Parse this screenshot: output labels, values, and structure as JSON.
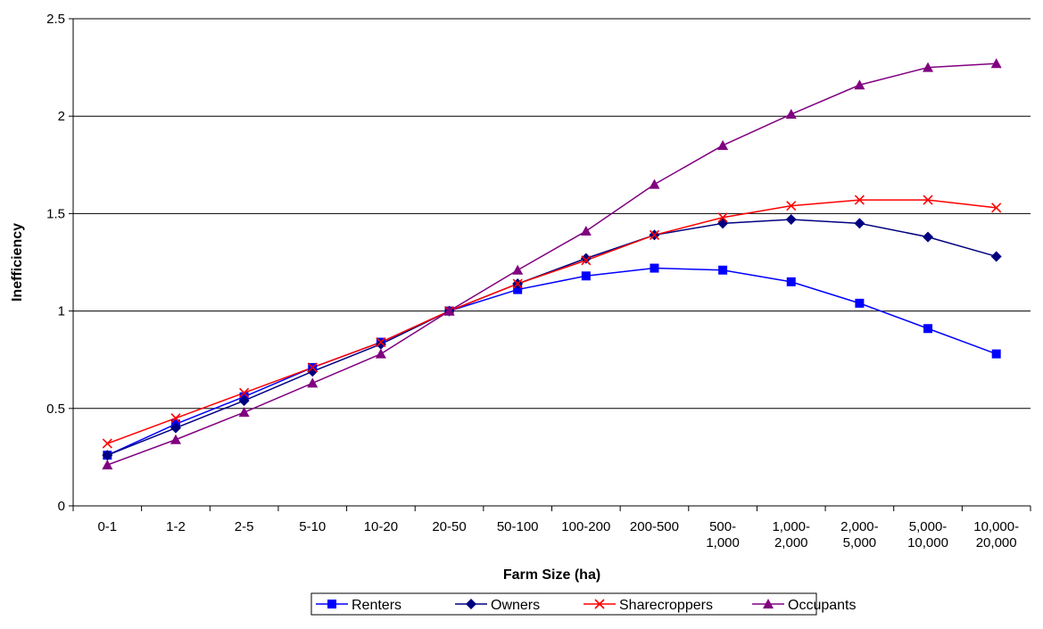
{
  "chart_data": {
    "type": "line",
    "title": "",
    "xlabel": "Farm Size (ha)",
    "ylabel": "Inefficiency",
    "ylim": [
      0,
      2.5
    ],
    "yticks": [
      "0",
      "0.5",
      "1",
      "1.5",
      "2",
      "2.5"
    ],
    "ytick_values": [
      0,
      0.5,
      1,
      1.5,
      2,
      2.5
    ],
    "grid": "horizontal",
    "legend_position": "bottom",
    "categories": [
      "0-1",
      "1-2",
      "2-5",
      "5-10",
      "10-20",
      "20-50",
      "50-100",
      "100-200",
      "200-500",
      "500-\n1,000",
      "1,000-\n2,000",
      "2,000-\n5,000",
      "5,000-\n10,000",
      "10,000-\n20,000"
    ],
    "series": [
      {
        "name": "Renters",
        "color": "#0000ff",
        "marker": "square",
        "values": [
          0.26,
          0.42,
          0.56,
          0.71,
          0.84,
          1.0,
          1.11,
          1.18,
          1.22,
          1.21,
          1.15,
          1.04,
          0.91,
          0.78
        ]
      },
      {
        "name": "Owners",
        "color": "#000080",
        "marker": "diamond",
        "values": [
          0.26,
          0.4,
          0.54,
          0.69,
          0.83,
          1.0,
          1.14,
          1.27,
          1.39,
          1.45,
          1.47,
          1.45,
          1.38,
          1.28
        ]
      },
      {
        "name": "Sharecroppers",
        "color": "#ff0000",
        "marker": "x",
        "values": [
          0.32,
          0.45,
          0.58,
          0.71,
          0.84,
          1.0,
          1.14,
          1.26,
          1.39,
          1.48,
          1.54,
          1.57,
          1.57,
          1.53
        ]
      },
      {
        "name": "Occupants",
        "color": "#800080",
        "marker": "triangle",
        "values": [
          0.21,
          0.34,
          0.48,
          0.63,
          0.78,
          1.0,
          1.21,
          1.41,
          1.65,
          1.85,
          2.01,
          2.16,
          2.25,
          2.27
        ]
      }
    ]
  }
}
